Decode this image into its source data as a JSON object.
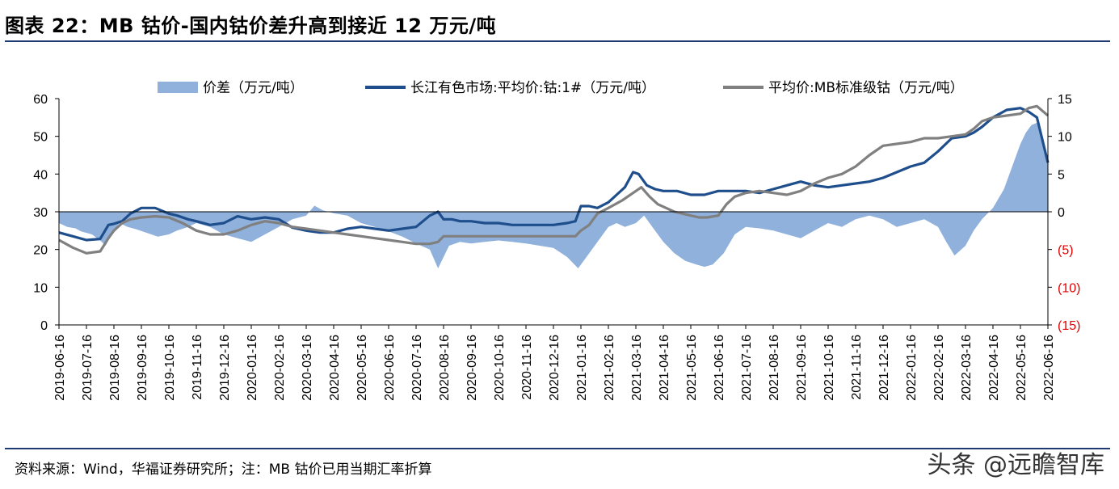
{
  "header": {
    "title": "图表 22：MB 钴价-国内钴价差升高到接近 12 万元/吨"
  },
  "footer": {
    "source": "资料来源：Wind，华福证券研究所；注：MB 钴价已用当期汇率折算",
    "watermark": "头条 @远瞻智库"
  },
  "chart_data": {
    "type": "line",
    "x_categories": [
      "2019-06-16",
      "2019-07-16",
      "2019-08-16",
      "2019-09-16",
      "2019-10-16",
      "2019-11-16",
      "2019-12-16",
      "2020-01-16",
      "2020-02-16",
      "2020-03-16",
      "2020-04-16",
      "2020-05-16",
      "2020-06-16",
      "2020-07-16",
      "2020-08-16",
      "2020-09-16",
      "2020-10-16",
      "2020-11-16",
      "2020-12-16",
      "2021-01-16",
      "2021-02-16",
      "2021-03-16",
      "2021-04-16",
      "2021-05-16",
      "2021-06-16",
      "2021-07-16",
      "2021-08-16",
      "2021-09-16",
      "2021-10-16",
      "2021-11-16",
      "2021-12-16",
      "2022-01-16",
      "2022-02-16",
      "2022-03-16",
      "2022-04-16",
      "2022-05-16",
      "2022-06-16"
    ],
    "y_left": {
      "ticks": [
        "0",
        "10",
        "20",
        "30",
        "40",
        "50",
        "60"
      ],
      "min": 0,
      "max": 60
    },
    "y_right": {
      "ticks": [
        "(15)",
        "(10)",
        "(5)",
        "0",
        "5",
        "10",
        "15"
      ],
      "min": -15,
      "max": 15,
      "negative_color": "#e00000"
    },
    "legend_position": "top",
    "grid": false,
    "series": [
      {
        "name": "价差（万元/吨）",
        "type": "area",
        "axis": "right",
        "color": "#8fb1dc",
        "x": [
          0,
          0.3,
          0.6,
          0.8,
          1,
          1.2,
          1.5,
          1.7,
          1.9,
          2.2,
          2.5,
          2.8,
          3.2,
          3.6,
          4.0,
          4.3,
          4.7,
          5.0,
          5.5,
          6.0,
          6.5,
          7.0,
          7.5,
          8.0,
          8.5,
          9.0,
          9.3,
          9.6,
          10.0,
          10.5,
          11.0,
          11.5,
          12.0,
          12.5,
          13.0,
          13.5,
          13.8,
          14.0,
          14.2,
          14.6,
          15.0,
          15.5,
          16.0,
          16.5,
          17.0,
          17.5,
          18.0,
          18.5,
          18.9,
          19.1,
          19.4,
          19.7,
          20.0,
          20.3,
          20.6,
          21.0,
          21.3,
          21.6,
          22.0,
          22.4,
          22.8,
          23.2,
          23.5,
          23.8,
          24.2,
          24.6,
          25.0,
          25.5,
          26.0,
          26.5,
          27.0,
          27.5,
          28.0,
          28.5,
          29.0,
          29.5,
          30.0,
          30.5,
          31.0,
          31.5,
          32.0,
          32.3,
          32.6,
          33.0,
          33.3,
          33.6,
          34.0,
          34.4,
          34.7,
          35.0,
          35.2,
          35.4,
          35.6,
          35.8,
          36.0
        ],
        "values": [
          -1.5,
          -2.0,
          -2.2,
          -2.6,
          -2.8,
          -3.0,
          -3.8,
          -4.5,
          -3.0,
          -1.5,
          -2.0,
          -2.3,
          -2.8,
          -3.3,
          -3.0,
          -2.5,
          -2.0,
          -1.5,
          -2.0,
          -3.0,
          -3.5,
          -4.0,
          -3.0,
          -2.0,
          -1.0,
          -0.5,
          0.8,
          0.2,
          -0.2,
          -0.5,
          -1.5,
          -2.0,
          -2.6,
          -3.3,
          -4.2,
          -5.0,
          -7.5,
          -6.0,
          -4.5,
          -4.0,
          -4.2,
          -4.0,
          -3.8,
          -4.0,
          -4.2,
          -4.5,
          -4.8,
          -6.0,
          -7.5,
          -6.5,
          -5.0,
          -3.5,
          -2.0,
          -1.5,
          -2.0,
          -1.5,
          -0.5,
          -2.0,
          -4.0,
          -5.5,
          -6.5,
          -7.0,
          -7.3,
          -7.0,
          -5.5,
          -3.0,
          -2.0,
          -2.2,
          -2.5,
          -3.0,
          -3.5,
          -2.5,
          -1.5,
          -2.0,
          -1.0,
          -0.5,
          -1.0,
          -2.0,
          -1.5,
          -1.0,
          -2.0,
          -4.0,
          -5.8,
          -4.5,
          -2.5,
          -1.0,
          0.5,
          3.0,
          6.0,
          9.0,
          10.5,
          11.5,
          11.8,
          9.0,
          6.5
        ]
      },
      {
        "name": "长江有色市场:平均价:钴:1#（万元/吨）",
        "type": "line",
        "axis": "left",
        "color": "#1f4e8c",
        "x": [
          0,
          0.5,
          1.0,
          1.5,
          1.8,
          2.0,
          2.3,
          2.6,
          3.0,
          3.5,
          4.0,
          4.3,
          4.7,
          5.0,
          5.5,
          6.0,
          6.5,
          7.0,
          7.5,
          8.0,
          8.5,
          9.0,
          9.5,
          10.0,
          10.5,
          11.0,
          11.5,
          12.0,
          12.5,
          13.0,
          13.5,
          13.8,
          14.0,
          14.3,
          14.6,
          15.0,
          15.5,
          16.0,
          16.5,
          17.0,
          17.5,
          18.0,
          18.5,
          18.8,
          19.0,
          19.3,
          19.6,
          20.0,
          20.3,
          20.6,
          20.9,
          21.1,
          21.4,
          21.7,
          22.0,
          22.5,
          23.0,
          23.5,
          24.0,
          24.5,
          25.0,
          25.5,
          26.0,
          26.5,
          27.0,
          27.5,
          28.0,
          28.5,
          29.0,
          29.5,
          30.0,
          30.5,
          31.0,
          31.5,
          32.0,
          32.5,
          33.0,
          33.3,
          33.6,
          34.0,
          34.5,
          35.0,
          35.3,
          35.6,
          36.0
        ],
        "values": [
          24.5,
          23.5,
          22.5,
          22.8,
          26.5,
          26.8,
          27.5,
          29.5,
          31.0,
          31.0,
          29.5,
          29.0,
          28.0,
          27.5,
          26.5,
          27.0,
          28.8,
          28.0,
          28.5,
          28.0,
          25.8,
          25.0,
          24.5,
          24.5,
          25.5,
          26.0,
          25.5,
          25.0,
          25.5,
          26.0,
          29.0,
          30.0,
          28.0,
          28.0,
          27.5,
          27.5,
          27.0,
          27.0,
          26.5,
          26.5,
          26.5,
          26.5,
          27.0,
          27.5,
          31.5,
          31.5,
          31.0,
          32.5,
          34.5,
          36.5,
          40.5,
          40.0,
          37.0,
          36.0,
          35.5,
          35.5,
          34.5,
          34.5,
          35.5,
          35.5,
          35.5,
          35.0,
          36.0,
          37.0,
          38.0,
          37.0,
          36.5,
          37.0,
          37.5,
          38.0,
          39.0,
          40.5,
          42.0,
          43.0,
          46.0,
          49.5,
          50.0,
          51.0,
          52.5,
          55.0,
          57.0,
          57.5,
          56.5,
          55.0,
          43.0
        ]
      },
      {
        "name": "平均价:MB标准级钴（万元/吨）",
        "type": "line",
        "axis": "left",
        "color": "#808080",
        "x": [
          0,
          0.5,
          1.0,
          1.5,
          1.8,
          2.0,
          2.3,
          2.6,
          3.0,
          3.5,
          4.0,
          4.5,
          5.0,
          5.5,
          6.0,
          6.5,
          7.0,
          7.5,
          8.0,
          8.5,
          9.0,
          9.5,
          10.0,
          10.5,
          11.0,
          11.5,
          12.0,
          12.5,
          13.0,
          13.5,
          13.8,
          14.0,
          14.5,
          15.0,
          15.5,
          16.0,
          16.5,
          17.0,
          17.5,
          18.0,
          18.5,
          18.8,
          19.0,
          19.3,
          19.6,
          20.0,
          20.5,
          20.9,
          21.2,
          21.5,
          21.8,
          22.1,
          22.4,
          22.7,
          23.0,
          23.3,
          23.6,
          24.0,
          24.3,
          24.6,
          25.0,
          25.5,
          26.0,
          26.5,
          27.0,
          27.5,
          28.0,
          28.5,
          29.0,
          29.5,
          30.0,
          30.5,
          31.0,
          31.5,
          32.0,
          32.5,
          33.0,
          33.3,
          33.6,
          34.0,
          34.5,
          35.0,
          35.3,
          35.6,
          36.0
        ],
        "values": [
          22.5,
          20.5,
          19.0,
          19.5,
          23.0,
          25.0,
          27.0,
          28.0,
          28.5,
          28.8,
          28.5,
          27.0,
          25.0,
          24.0,
          24.0,
          25.0,
          26.5,
          27.5,
          27.0,
          26.0,
          25.5,
          25.0,
          24.5,
          24.0,
          23.5,
          23.0,
          22.5,
          22.0,
          21.5,
          21.5,
          22.0,
          23.5,
          23.5,
          23.5,
          23.5,
          23.5,
          23.5,
          23.5,
          23.5,
          23.5,
          23.5,
          23.5,
          25.0,
          26.5,
          29.5,
          31.0,
          33.0,
          35.0,
          36.5,
          34.0,
          32.0,
          31.0,
          30.0,
          29.5,
          29.0,
          28.5,
          28.5,
          29.0,
          32.0,
          34.0,
          35.0,
          35.5,
          35.0,
          34.5,
          35.5,
          37.5,
          39.0,
          40.0,
          42.0,
          45.0,
          47.5,
          48.0,
          48.5,
          49.5,
          49.5,
          50.0,
          50.5,
          52.0,
          54.0,
          55.0,
          55.5,
          56.0,
          57.5,
          58.0,
          55.5
        ]
      }
    ]
  }
}
